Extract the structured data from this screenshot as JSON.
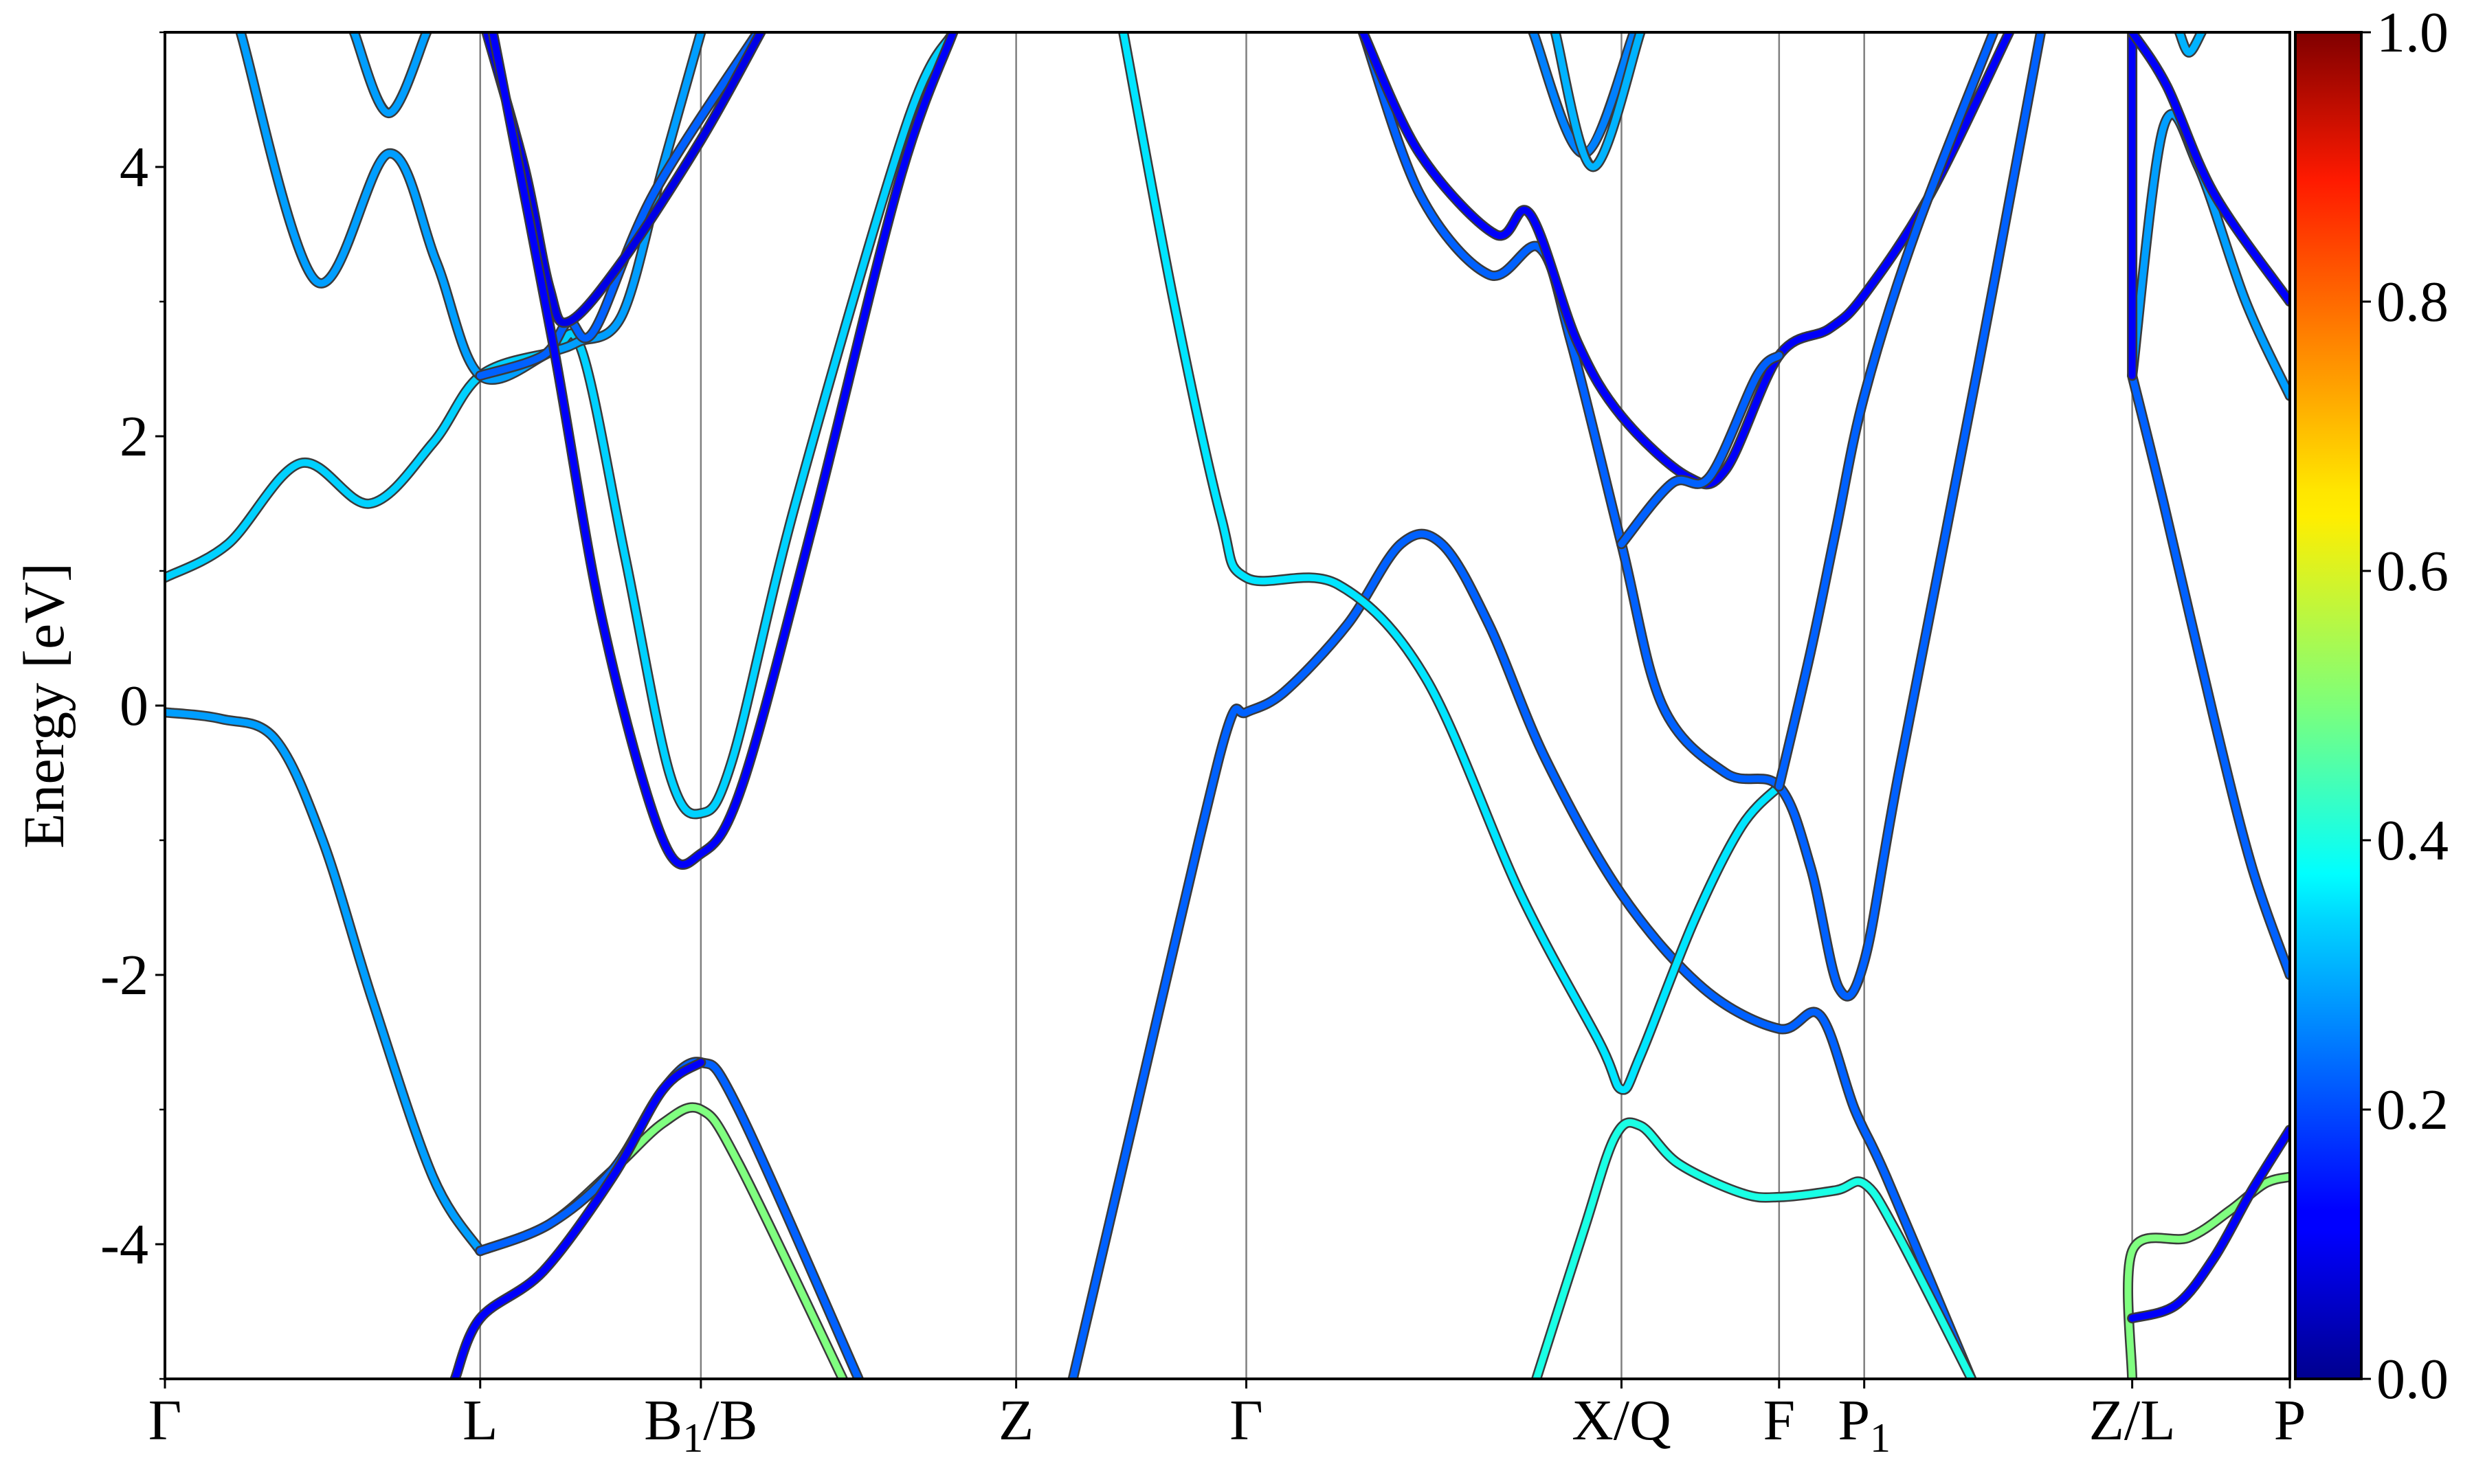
{
  "chart_data": {
    "type": "line",
    "title": "",
    "ylabel": "Energy [eV]",
    "xlabel": "",
    "ylim": [
      -5,
      5
    ],
    "y_ticks": [
      {
        "value": -4,
        "label": "-4"
      },
      {
        "value": -2,
        "label": "-2"
      },
      {
        "value": 0,
        "label": "0"
      },
      {
        "value": 2,
        "label": "2"
      },
      {
        "value": 4,
        "label": "4"
      }
    ],
    "grid": "vertical lines at high-symmetry points",
    "k_points": [
      {
        "label": "Γ",
        "sub": "",
        "rest": "",
        "pos": 0.0
      },
      {
        "label": "L",
        "sub": "",
        "rest": "",
        "pos": 1.0
      },
      {
        "label": "B",
        "sub": "1",
        "rest": "/B",
        "pos": 1.7
      },
      {
        "label": "Z",
        "sub": "",
        "rest": "",
        "pos": 2.7
      },
      {
        "label": "Γ",
        "sub": "",
        "rest": "",
        "pos": 3.43
      },
      {
        "label": "X/Q",
        "sub": "",
        "rest": "",
        "pos": 4.62
      },
      {
        "label": "F",
        "sub": "",
        "rest": "",
        "pos": 5.12
      },
      {
        "label": "P",
        "sub": "1",
        "rest": "",
        "pos": 5.39
      },
      {
        "label": "Z/L",
        "sub": "",
        "rest": "",
        "pos": 6.24
      },
      {
        "label": "P",
        "sub": "",
        "rest": "",
        "pos": 6.74
      }
    ],
    "x_range": [
      0,
      6.74
    ],
    "colorbar": {
      "colormap": "jet",
      "range": [
        0.0,
        1.0
      ],
      "ticks": [
        "0.0",
        "0.2",
        "0.4",
        "0.6",
        "0.8",
        "1.0"
      ]
    },
    "series": [
      {
        "c": 0.33,
        "points": [
          [
            0,
            0.95
          ],
          [
            0.2,
            1.2
          ],
          [
            0.43,
            1.8
          ],
          [
            0.65,
            1.5
          ],
          [
            0.85,
            1.95
          ],
          [
            1.0,
            2.45
          ],
          [
            1.22,
            2.62
          ],
          [
            1.32,
            2.65
          ],
          [
            1.46,
            1.1
          ],
          [
            1.6,
            -0.5
          ],
          [
            1.7,
            -0.8
          ],
          [
            1.8,
            -0.4
          ],
          [
            2.0,
            1.5
          ],
          [
            2.35,
            4.3
          ],
          [
            2.5,
            5.0
          ]
        ]
      },
      {
        "c": 0.28,
        "points": [
          [
            0.24,
            5.0
          ],
          [
            0.48,
            3.15
          ],
          [
            0.71,
            4.1
          ],
          [
            0.86,
            3.3
          ],
          [
            1.0,
            2.45
          ],
          [
            1.22,
            2.62
          ],
          [
            1.31,
            2.7
          ],
          [
            1.45,
            2.9
          ],
          [
            1.58,
            4.0
          ],
          [
            1.7,
            5.0
          ]
        ]
      },
      {
        "c": 0.28,
        "points": [
          [
            0.6,
            5.0
          ],
          [
            0.71,
            4.4
          ],
          [
            0.83,
            5.0
          ]
        ]
      },
      {
        "c": 0.22,
        "points": [
          [
            1.0,
            2.45
          ],
          [
            1.2,
            2.6
          ],
          [
            1.28,
            2.85
          ],
          [
            1.36,
            2.78
          ],
          [
            1.55,
            3.8
          ],
          [
            1.88,
            5.0
          ]
        ]
      },
      {
        "c": 0.1,
        "points": [
          [
            1.02,
            5.0
          ],
          [
            1.14,
            4.0
          ],
          [
            1.22,
            3.1
          ],
          [
            1.28,
            2.85
          ],
          [
            1.45,
            3.3
          ],
          [
            1.7,
            4.2
          ],
          [
            1.89,
            5.0
          ]
        ]
      },
      {
        "c": 0.12,
        "points": [
          [
            1.04,
            5.0
          ],
          [
            1.23,
            2.7
          ],
          [
            1.39,
            0.6
          ],
          [
            1.58,
            -1.0
          ],
          [
            1.7,
            -1.1
          ],
          [
            1.83,
            -0.6
          ],
          [
            2.05,
            1.3
          ],
          [
            2.33,
            3.9
          ],
          [
            2.5,
            5.0
          ]
        ]
      },
      {
        "c": 0.28,
        "points": [
          [
            0,
            -0.05
          ],
          [
            0.18,
            -0.1
          ],
          [
            0.35,
            -0.25
          ],
          [
            0.5,
            -1.0
          ],
          [
            0.66,
            -2.2
          ],
          [
            0.85,
            -3.5
          ],
          [
            1.0,
            -4.05
          ]
        ]
      },
      {
        "c": 0.5,
        "points": [
          [
            1.0,
            -4.05
          ],
          [
            1.22,
            -3.85
          ],
          [
            1.42,
            -3.45
          ],
          [
            1.58,
            -3.1
          ],
          [
            1.7,
            -3.0
          ],
          [
            1.82,
            -3.4
          ],
          [
            2.15,
            -5.0
          ]
        ]
      },
      {
        "c": 0.22,
        "points": [
          [
            1.0,
            -4.05
          ],
          [
            1.22,
            -3.85
          ],
          [
            1.42,
            -3.45
          ],
          [
            1.58,
            -2.85
          ],
          [
            1.7,
            -2.65
          ],
          [
            1.82,
            -3.0
          ],
          [
            2.2,
            -5.0
          ]
        ]
      },
      {
        "c": 0.12,
        "points": [
          [
            0.92,
            -5.0
          ],
          [
            1.0,
            -4.55
          ],
          [
            1.2,
            -4.2
          ],
          [
            1.42,
            -3.5
          ],
          [
            1.58,
            -2.85
          ],
          [
            1.7,
            -2.65
          ]
        ]
      },
      {
        "c": 0.22,
        "points": [
          [
            2.88,
            -5.0
          ],
          [
            3.08,
            -3.0
          ],
          [
            3.28,
            -1.0
          ],
          [
            3.38,
            -0.1
          ],
          [
            3.43,
            -0.05
          ],
          [
            3.55,
            0.1
          ],
          [
            3.75,
            0.6
          ],
          [
            3.92,
            1.2
          ],
          [
            4.05,
            1.2
          ],
          [
            4.2,
            0.6
          ],
          [
            4.38,
            -0.4
          ],
          [
            4.62,
            -1.4
          ],
          [
            4.88,
            -2.1
          ],
          [
            5.12,
            -2.4
          ],
          [
            5.25,
            -2.3
          ],
          [
            5.36,
            -3.0
          ],
          [
            5.46,
            -3.5
          ],
          [
            5.73,
            -5.0
          ]
        ]
      },
      {
        "c": 0.35,
        "points": [
          [
            3.04,
            5.0
          ],
          [
            3.2,
            3.0
          ],
          [
            3.35,
            1.4
          ],
          [
            3.43,
            0.95
          ],
          [
            3.72,
            0.9
          ],
          [
            4.0,
            0.2
          ],
          [
            4.3,
            -1.4
          ],
          [
            4.55,
            -2.5
          ],
          [
            4.62,
            -2.85
          ],
          [
            4.68,
            -2.6
          ],
          [
            4.85,
            -1.6
          ],
          [
            5.0,
            -0.9
          ],
          [
            5.12,
            -0.6
          ]
        ]
      },
      {
        "c": 0.22,
        "points": [
          [
            3.8,
            5.0
          ],
          [
            3.98,
            3.8
          ],
          [
            4.2,
            3.2
          ],
          [
            4.36,
            3.4
          ],
          [
            4.46,
            2.7
          ],
          [
            4.62,
            1.2
          ],
          [
            4.75,
            0.0
          ],
          [
            4.95,
            -0.5
          ],
          [
            5.12,
            -0.6
          ],
          [
            5.22,
            -1.2
          ],
          [
            5.31,
            -2.1
          ],
          [
            5.39,
            -1.9
          ],
          [
            5.5,
            -0.5
          ],
          [
            5.75,
            2.5
          ],
          [
            5.95,
            5.0
          ]
        ]
      },
      {
        "c": 0.12,
        "points": [
          [
            3.8,
            5.0
          ],
          [
            3.98,
            4.1
          ],
          [
            4.22,
            3.5
          ],
          [
            4.33,
            3.65
          ],
          [
            4.48,
            2.7
          ],
          [
            4.62,
            2.15
          ],
          [
            4.83,
            1.7
          ],
          [
            4.95,
            1.75
          ],
          [
            5.12,
            2.6
          ],
          [
            5.28,
            2.8
          ],
          [
            5.39,
            3.05
          ],
          [
            5.6,
            3.8
          ],
          [
            5.85,
            5.0
          ]
        ]
      },
      {
        "c": 0.22,
        "points": [
          [
            4.62,
            1.2
          ],
          [
            4.78,
            1.65
          ],
          [
            4.9,
            1.7
          ],
          [
            5.05,
            2.45
          ],
          [
            5.12,
            2.6
          ]
        ]
      },
      {
        "c": 0.25,
        "points": [
          [
            4.34,
            5.0
          ],
          [
            4.5,
            4.1
          ],
          [
            4.66,
            5.0
          ]
        ]
      },
      {
        "c": 0.3,
        "points": [
          [
            4.41,
            5.0
          ],
          [
            4.53,
            4.0
          ],
          [
            4.68,
            5.0
          ]
        ]
      },
      {
        "c": 0.22,
        "points": [
          [
            5.12,
            -0.6
          ],
          [
            5.22,
            0.4
          ],
          [
            5.3,
            1.3
          ],
          [
            5.39,
            2.3
          ],
          [
            5.55,
            3.5
          ],
          [
            5.8,
            5.0
          ]
        ]
      },
      {
        "c": 0.4,
        "points": [
          [
            4.35,
            -5.0
          ],
          [
            4.5,
            -3.9
          ],
          [
            4.6,
            -3.2
          ],
          [
            4.68,
            -3.12
          ],
          [
            4.8,
            -3.4
          ],
          [
            5.0,
            -3.62
          ],
          [
            5.12,
            -3.65
          ],
          [
            5.3,
            -3.6
          ],
          [
            5.39,
            -3.55
          ],
          [
            5.49,
            -3.9
          ],
          [
            5.73,
            -5.0
          ]
        ]
      },
      {
        "c": 0.5,
        "points": [
          [
            6.24,
            -5.0
          ],
          [
            6.24,
            -4.05
          ],
          [
            6.42,
            -3.95
          ],
          [
            6.55,
            -3.75
          ],
          [
            6.66,
            -3.55
          ],
          [
            6.74,
            -3.5
          ]
        ]
      },
      {
        "c": 0.12,
        "points": [
          [
            6.24,
            -4.55
          ],
          [
            6.38,
            -4.45
          ],
          [
            6.5,
            -4.1
          ],
          [
            6.62,
            -3.6
          ],
          [
            6.74,
            -3.15
          ]
        ]
      },
      {
        "c": 0.22,
        "points": [
          [
            6.24,
            2.45
          ],
          [
            6.34,
            1.5
          ],
          [
            6.5,
            -0.1
          ],
          [
            6.62,
            -1.2
          ],
          [
            6.74,
            -2.0
          ]
        ]
      },
      {
        "c": 0.28,
        "points": [
          [
            6.24,
            2.45
          ],
          [
            6.34,
            4.3
          ],
          [
            6.45,
            4.0
          ],
          [
            6.6,
            3.0
          ],
          [
            6.74,
            2.3
          ]
        ]
      },
      {
        "c": 0.12,
        "points": [
          [
            6.24,
            5.0
          ],
          [
            6.24,
            2.45
          ]
        ]
      },
      {
        "c": 0.12,
        "points": [
          [
            6.24,
            5.0
          ],
          [
            6.35,
            4.6
          ],
          [
            6.5,
            3.8
          ],
          [
            6.74,
            3.0
          ]
        ]
      },
      {
        "c": 0.3,
        "points": [
          [
            6.39,
            5.0
          ],
          [
            6.42,
            4.85
          ],
          [
            6.46,
            5.0
          ]
        ]
      }
    ]
  }
}
